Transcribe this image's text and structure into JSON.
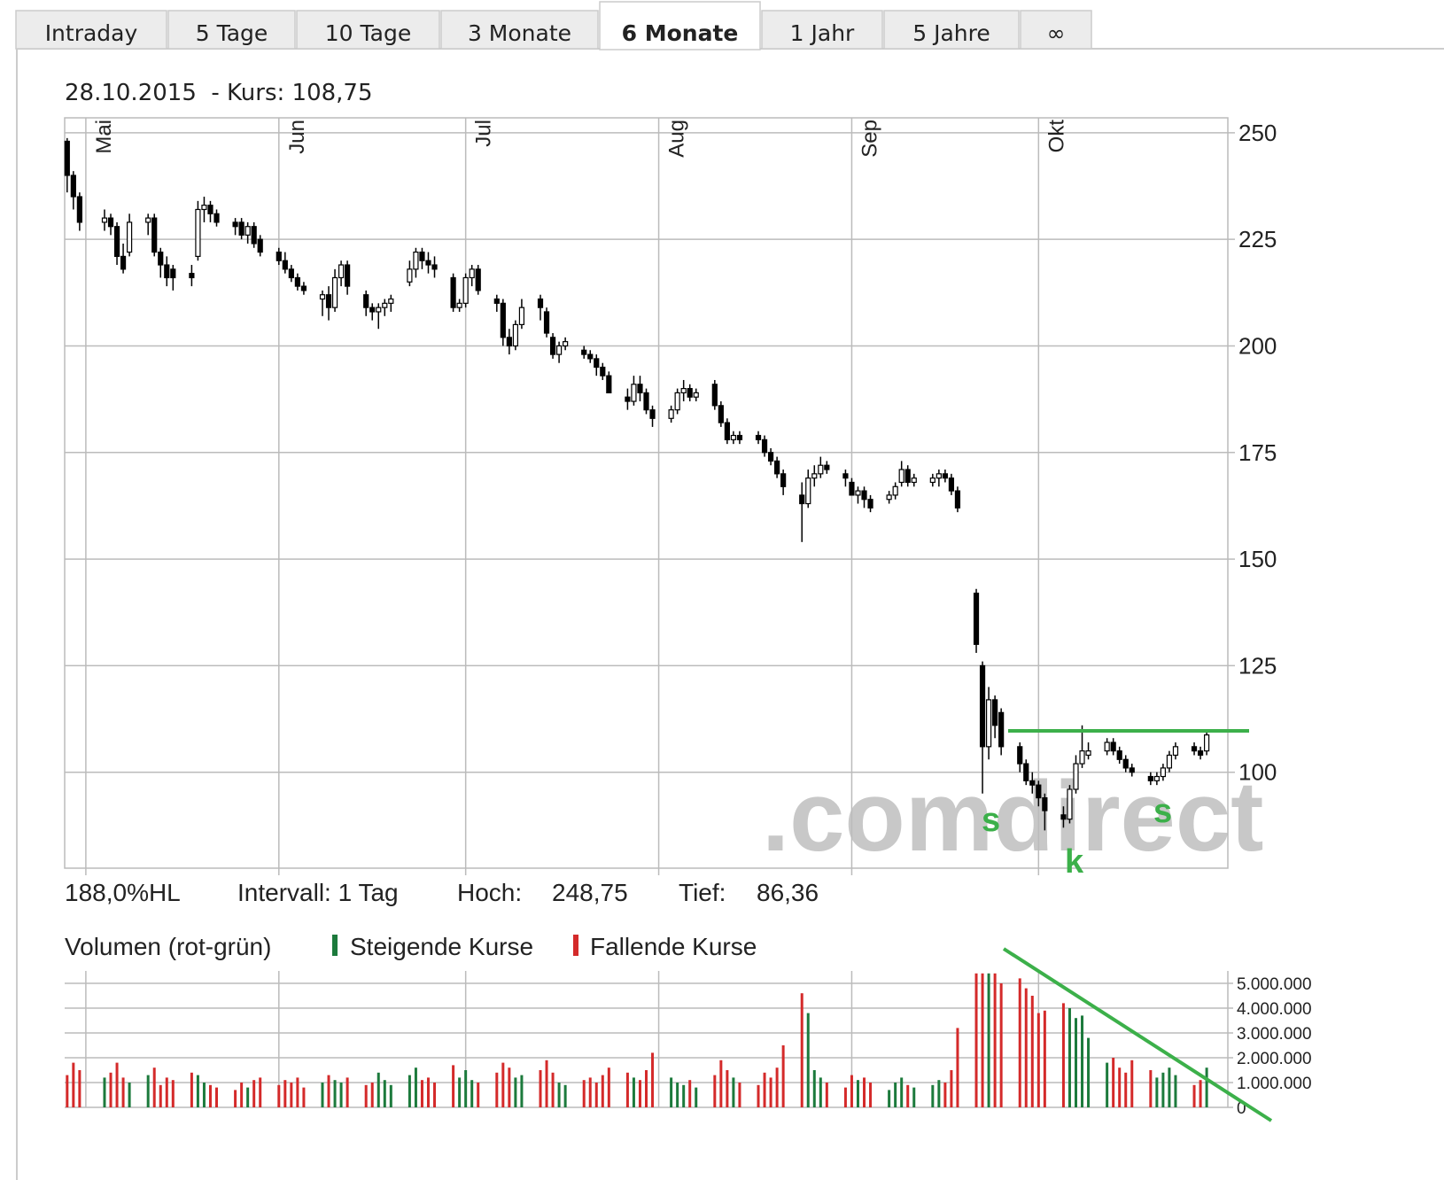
{
  "tabs": [
    "Intraday",
    "5 Tage",
    "10 Tage",
    "3 Monate",
    "6 Monate",
    "1 Jahr",
    "5 Jahre",
    "∞"
  ],
  "active_tab": 4,
  "header": "28.10.2015  - Kurs: 108,75",
  "info": {
    "range": "188,0%HL",
    "interval": "Intervall: 1 Tag",
    "high_label": "Hoch:",
    "high": "248,75",
    "low_label": "Tief:",
    "low": "86,36"
  },
  "volume_legend": {
    "title": "Volumen (rot-grün)",
    "up": "Steigende Kurse",
    "down": "Fallende Kurse"
  },
  "watermark": ".comdirect",
  "annotations": [
    "s",
    "k",
    "s"
  ],
  "chart_data": {
    "type": "candlestick",
    "xlim": [
      -3.4,
      183.4
    ],
    "xticks": [
      {
        "value": 0,
        "label": "Mai"
      },
      {
        "value": 31,
        "label": "Jun"
      },
      {
        "value": 61,
        "label": "Jul"
      },
      {
        "value": 92,
        "label": "Aug"
      },
      {
        "value": 123,
        "label": "Sep"
      },
      {
        "value": 153,
        "label": "Okt"
      }
    ],
    "ylim": [
      77.5,
      253.5
    ],
    "yticks": [
      100,
      125,
      150,
      175,
      200,
      225,
      250
    ],
    "grid": true,
    "up_fill": "#ffffff",
    "down_fill": "#000000",
    "x": [
      -3,
      -2,
      -1,
      3,
      4,
      5,
      6,
      7,
      10,
      11,
      12,
      13,
      14,
      17,
      18,
      19,
      20,
      21,
      24,
      25,
      26,
      27,
      28,
      31,
      32,
      33,
      34,
      35,
      38,
      39,
      40,
      41,
      42,
      45,
      46,
      47,
      48,
      49,
      52,
      53,
      54,
      55,
      56,
      59,
      60,
      61,
      62,
      63,
      66,
      67,
      68,
      69,
      70,
      73,
      74,
      75,
      76,
      77,
      80,
      81,
      82,
      83,
      84,
      87,
      88,
      89,
      90,
      91,
      94,
      95,
      96,
      97,
      98,
      101,
      102,
      103,
      104,
      105,
      108,
      109,
      110,
      111,
      112,
      115,
      116,
      117,
      118,
      119,
      122,
      123,
      124,
      125,
      126,
      129,
      130,
      131,
      132,
      133,
      136,
      137,
      138,
      139,
      140,
      143,
      144,
      145,
      146,
      147,
      150,
      151,
      152,
      153,
      154,
      157,
      158,
      159,
      160,
      161,
      164,
      165,
      166,
      167,
      168,
      171,
      172,
      173,
      174,
      175,
      178,
      179,
      180
    ],
    "open": [
      248,
      240,
      235,
      229,
      230,
      228,
      221,
      222,
      229,
      230,
      222,
      219,
      218,
      217,
      221,
      232,
      233,
      231,
      229,
      229,
      226,
      228,
      225,
      222,
      220,
      218,
      216,
      214,
      211,
      212,
      209,
      216,
      219,
      212,
      209,
      208,
      209,
      210,
      215,
      218,
      222,
      220,
      219,
      216,
      209,
      210,
      216,
      218,
      211,
      210,
      202,
      200,
      205,
      211,
      208,
      202,
      198,
      200,
      199,
      198,
      197,
      195,
      193,
      188,
      187,
      191,
      189,
      185,
      183,
      185,
      189,
      190,
      188,
      191,
      186,
      182,
      178,
      179,
      179,
      178,
      175,
      173,
      170,
      165,
      163,
      169,
      170,
      172,
      170,
      168,
      165,
      166,
      164,
      164,
      165,
      168,
      171,
      168,
      168,
      169,
      170,
      169,
      166,
      142,
      125,
      106,
      117,
      114,
      106,
      102,
      98,
      97,
      94,
      90,
      89,
      96,
      102,
      104,
      105,
      107,
      105,
      103,
      101,
      99,
      98,
      99,
      101,
      104,
      106,
      105,
      105
    ],
    "high": [
      248.75,
      241,
      236,
      232,
      231,
      229,
      224,
      231,
      231,
      231,
      223,
      221,
      219,
      219,
      234,
      235,
      234,
      232,
      230,
      230,
      229,
      229,
      226,
      223,
      222,
      219,
      217,
      215,
      213,
      214,
      218,
      220,
      220,
      213,
      210,
      210,
      211,
      212,
      220,
      223,
      223,
      222,
      221,
      217,
      211,
      217,
      219,
      219,
      212,
      211,
      204,
      206,
      211,
      212,
      209,
      203,
      201,
      202,
      200,
      199,
      198,
      196,
      194,
      190,
      193,
      193,
      190,
      186,
      186,
      190,
      192,
      191,
      190,
      192,
      187,
      183,
      180,
      180,
      180,
      179,
      176,
      174,
      171,
      168,
      171,
      172,
      174,
      173,
      171,
      169,
      167,
      167,
      165,
      166,
      168,
      173,
      172,
      170,
      170,
      171,
      171,
      170,
      167,
      143,
      126,
      120,
      118,
      115,
      107,
      103,
      100,
      98,
      95,
      92,
      97,
      104,
      111,
      107,
      108,
      108,
      106,
      104,
      102,
      100,
      100,
      102,
      105,
      107,
      107,
      106,
      109.5
    ],
    "low": [
      236,
      232,
      227,
      227,
      226,
      219,
      217,
      221,
      226,
      221,
      216,
      214,
      213,
      214,
      220,
      229,
      229,
      228,
      226,
      225,
      224,
      223,
      221,
      219,
      217,
      215,
      213,
      212,
      207,
      206,
      208,
      214,
      212,
      207,
      206,
      204,
      207,
      208,
      214,
      216,
      218,
      217,
      216,
      208,
      208,
      209,
      214,
      212,
      208,
      200,
      198,
      199,
      204,
      206,
      202,
      197,
      196,
      199,
      197,
      196,
      193,
      192,
      189,
      185,
      186,
      187,
      184,
      181,
      182,
      184,
      187,
      187,
      187,
      185,
      181,
      177,
      177,
      177,
      177,
      174,
      172,
      169,
      165,
      154,
      162,
      167,
      169,
      170,
      167,
      165,
      163,
      162,
      161,
      163,
      164,
      167,
      167,
      167,
      167,
      167,
      168,
      165,
      161,
      128,
      95,
      103,
      108,
      104,
      100,
      97,
      95,
      92,
      86.36,
      87,
      88,
      95,
      101,
      103,
      104,
      104,
      102,
      100,
      99,
      97,
      97,
      98,
      100,
      103,
      104,
      103,
      104
    ],
    "close": [
      240,
      235,
      229,
      230,
      228,
      221,
      218,
      229,
      230,
      222,
      219,
      216,
      216,
      216,
      232,
      233,
      231,
      229,
      228,
      226,
      228,
      224,
      222,
      220,
      218,
      216,
      214,
      213,
      212,
      209,
      216,
      219,
      214,
      209,
      208,
      209,
      210,
      211,
      218,
      222,
      220,
      219,
      218,
      209,
      210,
      216,
      218,
      213,
      210,
      202,
      200,
      205,
      209,
      209,
      203,
      198,
      200,
      201,
      198,
      197,
      195,
      193,
      189,
      187,
      191,
      189,
      185,
      183,
      185,
      189,
      190,
      188,
      189,
      186,
      182,
      178,
      179,
      178,
      178,
      175,
      173,
      170,
      167,
      163,
      169,
      170,
      172,
      171,
      169,
      165,
      166,
      164,
      162,
      165,
      167,
      171,
      168,
      169,
      169,
      170,
      169,
      166,
      162,
      130,
      106,
      117,
      111,
      106,
      102,
      98,
      97,
      94,
      91,
      89,
      96,
      102,
      105,
      105,
      107,
      105,
      103,
      101,
      100,
      98,
      99,
      101,
      104,
      106,
      105,
      104,
      108.75
    ],
    "volume": [
      1300000,
      1800000,
      1500000,
      1200000,
      1400000,
      1800000,
      1200000,
      1000000,
      1300000,
      1600000,
      900000,
      1200000,
      1100000,
      1400000,
      1300000,
      1000000,
      900000,
      800000,
      700000,
      1000000,
      800000,
      1100000,
      1200000,
      900000,
      1100000,
      1000000,
      1200000,
      800000,
      1000000,
      1300000,
      1100000,
      1000000,
      1200000,
      900000,
      1000000,
      1400000,
      1100000,
      900000,
      1300000,
      1600000,
      1100000,
      1200000,
      1000000,
      1700000,
      1200000,
      1500000,
      1100000,
      1000000,
      1400000,
      1800000,
      1600000,
      1200000,
      1300000,
      1500000,
      1900000,
      1400000,
      1000000,
      900000,
      1100000,
      1200000,
      1000000,
      1300000,
      1600000,
      1400000,
      1200000,
      1100000,
      1500000,
      2200000,
      1200000,
      1000000,
      900000,
      1100000,
      800000,
      1300000,
      1900000,
      1500000,
      1200000,
      1000000,
      900000,
      1400000,
      1200000,
      1600000,
      2500000,
      4600000,
      3800000,
      1500000,
      1200000,
      1000000,
      800000,
      1300000,
      1100000,
      1200000,
      1000000,
      700000,
      1000000,
      1200000,
      900000,
      800000,
      900000,
      1100000,
      1000000,
      1500000,
      3200000,
      5400000,
      5400000,
      5400000,
      5400000,
      5000000,
      5200000,
      4800000,
      4500000,
      3800000,
      3900000,
      4200000,
      4000000,
      3600000,
      3700000,
      2800000,
      1800000,
      2000000,
      1600000,
      1400000,
      1900000,
      1500000,
      1200000,
      1400000,
      1600000,
      1300000,
      900000,
      1100000,
      1600000
    ],
    "vlim": [
      0,
      5500000
    ],
    "vticks": [
      0,
      {
        "value": 1000000,
        "label": "1.000.000"
      },
      {
        "value": 2000000,
        "label": "2.000.000"
      },
      {
        "value": 3000000,
        "label": "3.000.000"
      },
      {
        "value": 4000000,
        "label": "4.000.000"
      },
      {
        "value": 5000000,
        "label": "5.000.000"
      }
    ],
    "up_color": "#1c7a3c",
    "down_color": "#d42a2a"
  }
}
